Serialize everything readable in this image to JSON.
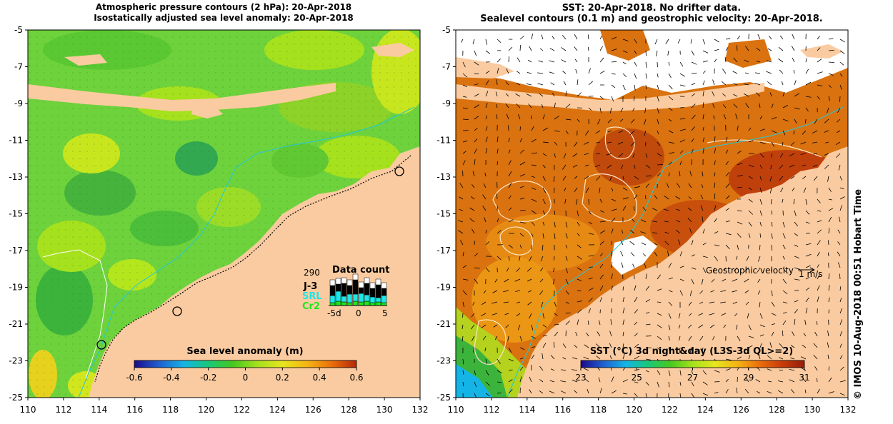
{
  "left_panel": {
    "title_line1": "Atmospheric pressure contours (2 hPa): 20-Apr-2018",
    "title_line2": "Isostatically adjusted sea level anomaly: 20-Apr-2018",
    "x_ticks": [
      "110",
      "112",
      "114",
      "116",
      "118",
      "120",
      "122",
      "124",
      "126",
      "128",
      "130",
      "132"
    ],
    "y_ticks": [
      "-5",
      "-7",
      "-9",
      "-11",
      "-13",
      "-15",
      "-17",
      "-19",
      "-21",
      "-23",
      "-25"
    ],
    "colorbar_label": "Sea level anomaly (m)",
    "colorbar_ticks": [
      "-0.6",
      "-0.4",
      "-0.2",
      "0",
      "0.2",
      "0.4",
      "0.6"
    ],
    "colorbar_colors": [
      "#1a0a8a",
      "#1f5fd0",
      "#14b4e6",
      "#19c87a",
      "#46c81e",
      "#a6e11e",
      "#e6e61e",
      "#f5b414",
      "#eb6e0a",
      "#b4280a"
    ],
    "data_count": {
      "title": "Data count",
      "max_label": "290",
      "series": [
        {
          "name": "J-3",
          "color": "#000000"
        },
        {
          "name": "SRL",
          "color": "#1ee6e6"
        },
        {
          "name": "Cr2",
          "color": "#1ee61e"
        }
      ],
      "axis_ticks": [
        "-5d",
        "0",
        "5"
      ]
    }
  },
  "right_panel": {
    "title_line1": "SST: 20-Apr-2018. No drifter data.",
    "title_line2": "Sealevel contours (0.1 m) and geostrophic velocity: 20-Apr-2018.",
    "x_ticks": [
      "110",
      "112",
      "114",
      "116",
      "118",
      "120",
      "122",
      "124",
      "126",
      "128",
      "130",
      "132"
    ],
    "y_ticks": [
      "-5",
      "-7",
      "-9",
      "-11",
      "-13",
      "-15",
      "-17",
      "-19",
      "-21",
      "-23",
      "-25"
    ],
    "geostrophic_label": "Geostrophic velocity",
    "velocity_scale": "1 m/s",
    "colorbar_label": "SST (°C) 3d night&day (L3S-3d QL>=2)",
    "colorbar_ticks": [
      "23",
      "25",
      "27",
      "29",
      "31"
    ],
    "colorbar_colors": [
      "#1a0a8a",
      "#1f5fd0",
      "#14b4e6",
      "#19c87a",
      "#46c81e",
      "#a6e11e",
      "#e6e61e",
      "#f5b414",
      "#eb6e0a",
      "#c83c0a",
      "#961e0a"
    ]
  },
  "credit": "© IMOS 10-Aug-2018 00:51 Hobart Time",
  "colors": {
    "land": "#facba0",
    "sla_background": "#6ed23c",
    "sst_background": "#d9720f"
  }
}
